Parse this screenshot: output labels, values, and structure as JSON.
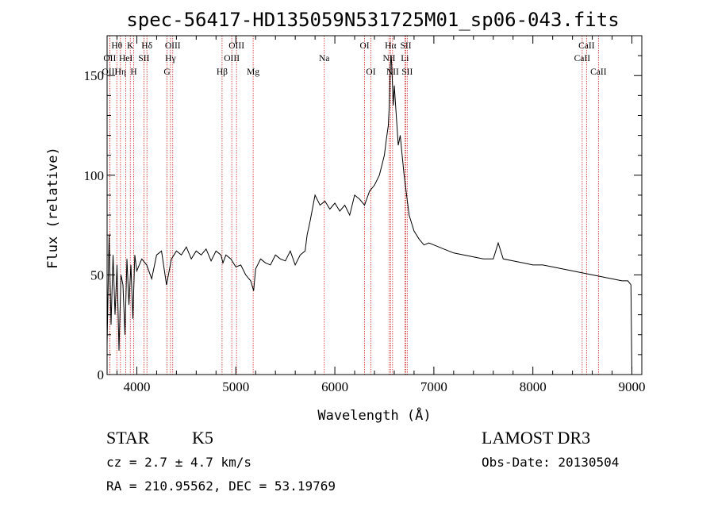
{
  "chart_data": {
    "type": "line",
    "title": "spec-56417-HD135059N531725M01_sp06-043.fits",
    "xlabel": "Wavelength (Å)",
    "ylabel": "Flux (relative)",
    "xlim": [
      3700,
      9100
    ],
    "ylim": [
      0,
      170
    ],
    "xticks": [
      4000,
      5000,
      6000,
      7000,
      8000,
      9000
    ],
    "yticks": [
      0,
      50,
      100,
      150
    ],
    "grid": false,
    "series": [
      {
        "x": [
          3700,
          3720,
          3740,
          3760,
          3780,
          3800,
          3820,
          3840,
          3860,
          3880,
          3900,
          3920,
          3940,
          3960,
          3980,
          4000,
          4050,
          4100,
          4150,
          4200,
          4250,
          4300,
          4350,
          4400,
          4450,
          4500,
          4550,
          4600,
          4650,
          4700,
          4750,
          4800,
          4850,
          4870,
          4900,
          4950,
          5000,
          5050,
          5100,
          5150,
          5180,
          5200,
          5250,
          5300,
          5350,
          5400,
          5450,
          5500,
          5550,
          5600,
          5650,
          5700,
          5720,
          5750,
          5800,
          5850,
          5900,
          5950,
          6000,
          6050,
          6100,
          6150,
          6200,
          6250,
          6300,
          6350,
          6400,
          6450,
          6500,
          6520,
          6540,
          6550,
          6560,
          6570,
          6580,
          6590,
          6600,
          6620,
          6640,
          6660,
          6680,
          6700,
          6720,
          6750,
          6800,
          6850,
          6900,
          6950,
          7000,
          7100,
          7200,
          7300,
          7400,
          7500,
          7600,
          7650,
          7700,
          7800,
          7900,
          8000,
          8100,
          8200,
          8300,
          8400,
          8500,
          8600,
          8700,
          8800,
          8900,
          8960,
          8990,
          9000
        ],
        "y": [
          15,
          70,
          25,
          60,
          30,
          55,
          12,
          50,
          45,
          20,
          58,
          35,
          55,
          28,
          60,
          52,
          58,
          55,
          48,
          60,
          62,
          45,
          58,
          62,
          60,
          64,
          58,
          62,
          60,
          63,
          57,
          62,
          60,
          56,
          60,
          58,
          54,
          55,
          50,
          47,
          42,
          53,
          58,
          56,
          55,
          60,
          58,
          57,
          62,
          55,
          60,
          62,
          70,
          77,
          90,
          85,
          87,
          83,
          86,
          82,
          85,
          80,
          90,
          88,
          85,
          92,
          95,
          100,
          110,
          118,
          125,
          135,
          155,
          160,
          148,
          135,
          145,
          130,
          115,
          120,
          110,
          100,
          92,
          80,
          72,
          68,
          65,
          66,
          65,
          63,
          61,
          60,
          59,
          58,
          58,
          66,
          58,
          57,
          56,
          55,
          55,
          54,
          53,
          52,
          51,
          50,
          49,
          48,
          47,
          47,
          45,
          0
        ]
      }
    ],
    "line_markers": [
      {
        "label": "Hθ",
        "x": 3798,
        "row": 1
      },
      {
        "label": "OII",
        "x": 3727,
        "row": 2
      },
      {
        "label": "OIII",
        "x": 3727,
        "row": 3
      },
      {
        "label": "Hη",
        "x": 3835,
        "row": 3
      },
      {
        "label": "HeI",
        "x": 3889,
        "row": 2
      },
      {
        "label": "K",
        "x": 3934,
        "row": 1
      },
      {
        "label": "H",
        "x": 3969,
        "row": 3
      },
      {
        "label": "SII",
        "x": 4072,
        "row": 2
      },
      {
        "label": "Hδ",
        "x": 4102,
        "row": 1
      },
      {
        "label": "OIII",
        "x": 4363,
        "row": 1
      },
      {
        "label": "Hγ",
        "x": 4340,
        "row": 2
      },
      {
        "label": "G",
        "x": 4305,
        "row": 3
      },
      {
        "label": "OIII",
        "x": 5007,
        "row": 1
      },
      {
        "label": "OIII",
        "x": 4959,
        "row": 2
      },
      {
        "label": "Hβ",
        "x": 4861,
        "row": 3
      },
      {
        "label": "Mg",
        "x": 5175,
        "row": 3
      },
      {
        "label": "Na",
        "x": 5893,
        "row": 2
      },
      {
        "label": "OI",
        "x": 6300,
        "row": 1
      },
      {
        "label": "OI",
        "x": 6364,
        "row": 3
      },
      {
        "label": "Hα",
        "x": 6563,
        "row": 1
      },
      {
        "label": "SII",
        "x": 6717,
        "row": 1
      },
      {
        "label": "NII",
        "x": 6548,
        "row": 2
      },
      {
        "label": "Li",
        "x": 6707,
        "row": 2
      },
      {
        "label": "NII",
        "x": 6583,
        "row": 3
      },
      {
        "label": "SII",
        "x": 6731,
        "row": 3
      },
      {
        "label": "CaII",
        "x": 8542,
        "row": 1
      },
      {
        "label": "CaII",
        "x": 8498,
        "row": 2
      },
      {
        "label": "CaII",
        "x": 8662,
        "row": 3
      }
    ]
  },
  "info": {
    "class": "STAR",
    "subclass": "K5",
    "cz": "cz = 2.7 ± 4.7 km/s",
    "coords": "RA = 210.95562, DEC =  53.19769",
    "survey": "LAMOST DR3",
    "obs_date": "Obs-Date: 20130504"
  },
  "colors": {
    "spectrum": "#000000",
    "marker_line": "#cc2222"
  }
}
